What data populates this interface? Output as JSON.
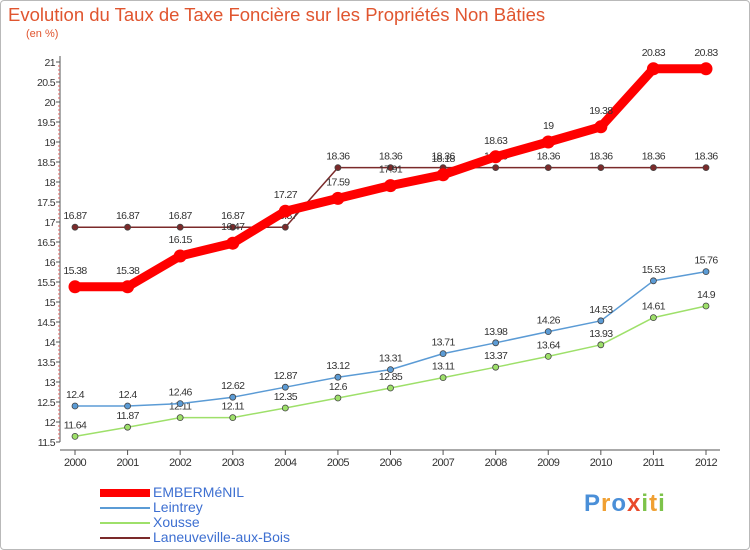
{
  "title": "Evolution du Taux de Taxe Foncière sur les Propriétés Non Bâties",
  "unit": "(en %)",
  "brand": {
    "letters": [
      "P",
      "r",
      "o",
      "x",
      "i",
      "t",
      "i"
    ],
    "colors": [
      "#4a8fd8",
      "#f0a032",
      "#4a8fd8",
      "#e94a2a",
      "#7dc34a",
      "#f0a032",
      "#7dc34a"
    ]
  },
  "chart_data": {
    "type": "line",
    "title": "Evolution du Taux de Taxe Foncière sur les Propriétés Non Bâties",
    "ylabel": "(en %)",
    "xlabel": "",
    "grid": false,
    "legend_position": "bottom-left",
    "ylim": [
      11.5,
      21
    ],
    "y_ticks": [
      "11.5",
      "12",
      "12.5",
      "13",
      "13.5",
      "14",
      "14.5",
      "15",
      "15.5",
      "16",
      "16.5",
      "17",
      "17.5",
      "18",
      "18.5",
      "19",
      "19.5",
      "20",
      "20.5",
      "21"
    ],
    "categories": [
      "2000",
      "2001",
      "2002",
      "2003",
      "2004",
      "2005",
      "2006",
      "2007",
      "2008",
      "2009",
      "2010",
      "2011",
      "2012"
    ],
    "series": [
      {
        "name": "Laneuveville-aux-Bois",
        "color": "#7b2a2a",
        "style": "thin",
        "values": [
          16.87,
          16.87,
          16.87,
          16.87,
          16.87,
          18.36,
          18.36,
          18.36,
          18.36,
          18.36,
          18.36,
          18.36,
          18.36
        ],
        "labels": [
          "16.87",
          "16.87",
          "16.87",
          "16.87",
          "16.87",
          "18.36",
          "18.36",
          "18.36",
          "18.36",
          "18.36",
          "18.36",
          "18.36",
          "18.36"
        ]
      },
      {
        "name": "Xousse",
        "color": "#9ee06a",
        "style": "thin",
        "values": [
          11.64,
          11.87,
          12.11,
          12.11,
          12.35,
          12.6,
          12.85,
          13.11,
          13.37,
          13.64,
          13.93,
          14.61,
          14.9
        ],
        "labels": [
          "11.64",
          "11.87",
          "12.11",
          "12.11",
          "12.35",
          "12.6",
          "12.85",
          "13.11",
          "13.37",
          "13.64",
          "13.93",
          "14.61",
          "14.9"
        ]
      },
      {
        "name": "Leintrey",
        "color": "#5b9bd5",
        "style": "thin",
        "values": [
          12.4,
          12.4,
          12.46,
          12.62,
          12.87,
          13.12,
          13.31,
          13.71,
          13.98,
          14.26,
          14.53,
          15.53,
          15.76
        ],
        "labels": [
          "12.4",
          "12.4",
          "12.46",
          "12.62",
          "12.87",
          "13.12",
          "13.31",
          "13.71",
          "13.98",
          "14.26",
          "14.53",
          "15.53",
          "15.76"
        ]
      },
      {
        "name": "EMBERMéNIL",
        "color": "#ff0000",
        "style": "thick",
        "values": [
          15.38,
          15.38,
          16.15,
          16.47,
          17.27,
          17.59,
          17.91,
          18.18,
          18.63,
          19,
          19.38,
          20.83,
          20.83
        ],
        "labels": [
          "15.38",
          "15.38",
          "16.15",
          "16.47",
          "17.27",
          "17.59",
          "17.91",
          "18.18",
          "18.63",
          "19",
          "19.38",
          "20.83",
          "20.83"
        ]
      }
    ],
    "legend": [
      "EMBERMéNIL",
      "Leintrey",
      "Xousse",
      "Laneuveville-aux-Bois"
    ]
  }
}
